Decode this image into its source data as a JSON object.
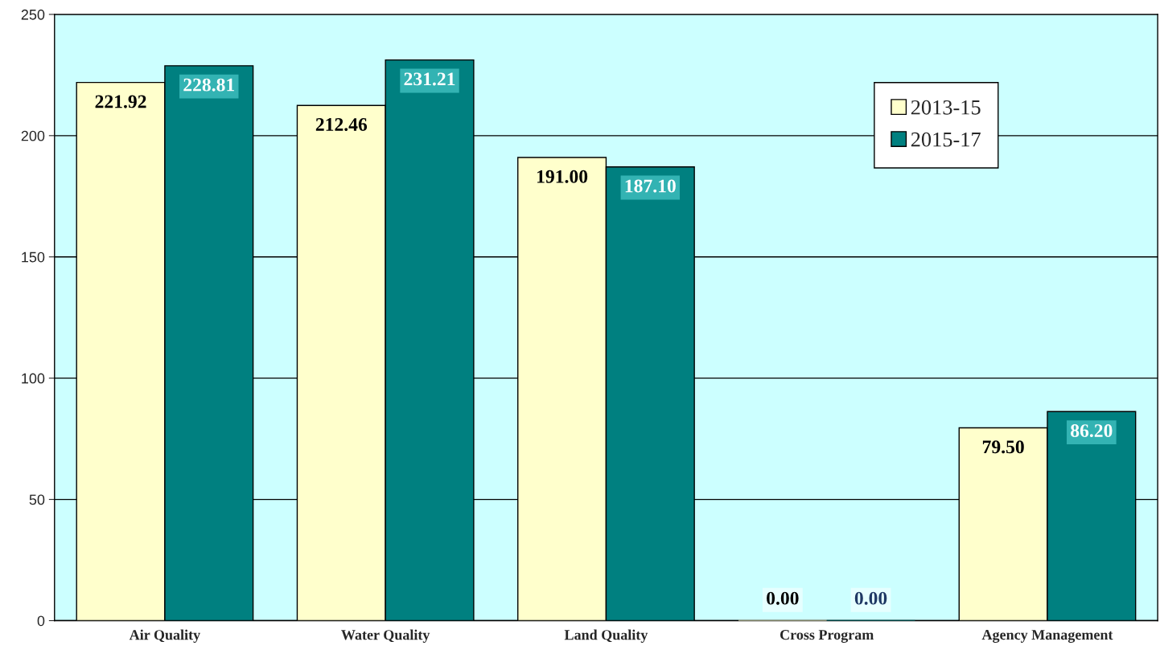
{
  "chart_data": {
    "type": "bar",
    "categories": [
      "Air Quality",
      "Water Quality",
      "Land Quality",
      "Cross Program",
      "Agency Management"
    ],
    "series": [
      {
        "name": "2013-15",
        "color": "#ffffcc",
        "values": [
          221.92,
          212.46,
          191.0,
          0.0,
          79.5
        ],
        "value_labels": [
          "221.92",
          "212.46",
          "191.00",
          "0.00",
          "79.50"
        ]
      },
      {
        "name": "2015-17",
        "color": "#008080",
        "values": [
          228.81,
          231.21,
          187.1,
          0.0,
          86.2
        ],
        "value_labels": [
          "228.81",
          "231.21",
          "187.10",
          "0.00",
          "86.20"
        ]
      }
    ],
    "ylim": [
      0,
      250
    ],
    "yticks": [
      0,
      50,
      100,
      150,
      200,
      250
    ],
    "grid": "y",
    "legend": "top right"
  }
}
